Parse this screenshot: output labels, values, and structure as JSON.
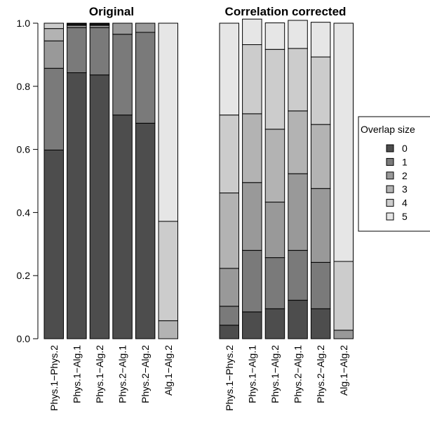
{
  "chart_data": {
    "type": "bar",
    "stacked": true,
    "y_axis": {
      "ticks": [
        "0.0",
        "0.2",
        "0.4",
        "0.6",
        "0.8",
        "1.0"
      ],
      "tick_values": [
        0,
        0.2,
        0.4,
        0.6,
        0.8,
        1.0
      ],
      "ylim": [
        0,
        1
      ]
    },
    "categories": [
      "Phys.1−Phys.2",
      "Phys.1−Alg.1",
      "Phys.1−Alg.2",
      "Phys.2−Alg.1",
      "Phys.2−Alg.2",
      "Alg.1−Alg.2"
    ],
    "series_colors": [
      "#4d4d4d",
      "#7a7a7a",
      "#999999",
      "#b3b3b3",
      "#cccccc",
      "#e6e6e6"
    ],
    "legend": {
      "title": "Overlap size",
      "entries": [
        "0",
        "1",
        "2",
        "3",
        "4",
        "5"
      ],
      "placement": "right"
    },
    "panels": [
      {
        "title": "Original",
        "series": [
          {
            "name": "0",
            "values": [
              0.598,
              0.843,
              0.836,
              0.709,
              0.683,
              0.0
            ]
          },
          {
            "name": "1",
            "values": [
              0.259,
              0.143,
              0.15,
              0.256,
              0.288,
              0.0
            ]
          },
          {
            "name": "2",
            "values": [
              0.087,
              0.007,
              0.007,
              0.035,
              0.029,
              0.0
            ]
          },
          {
            "name": "3",
            "values": [
              0.039,
              0.003,
              0.003,
              0.0,
              0.0,
              0.057
            ]
          },
          {
            "name": "4",
            "values": [
              0.017,
              0.002,
              0.002,
              0.0,
              0.0,
              0.315
            ]
          },
          {
            "name": "5",
            "values": [
              0.0,
              0.002,
              0.002,
              0.0,
              0.0,
              0.628
            ]
          }
        ]
      },
      {
        "title": "Correlation corrected",
        "series": [
          {
            "name": "0",
            "values": [
              0.043,
              0.085,
              0.095,
              0.122,
              0.095,
              0.0
            ]
          },
          {
            "name": "1",
            "values": [
              0.06,
              0.195,
              0.162,
              0.158,
              0.147,
              0.0
            ]
          },
          {
            "name": "2",
            "values": [
              0.12,
              0.215,
              0.176,
              0.243,
              0.234,
              0.027
            ]
          },
          {
            "name": "3",
            "values": [
              0.239,
              0.218,
              0.231,
              0.199,
              0.203,
              0.0
            ]
          },
          {
            "name": "4",
            "values": [
              0.247,
              0.219,
              0.253,
              0.198,
              0.214,
              0.218
            ]
          },
          {
            "name": "5",
            "values": [
              0.291,
              0.081,
              0.084,
              0.089,
              0.11,
              0.755
            ]
          }
        ]
      }
    ]
  }
}
